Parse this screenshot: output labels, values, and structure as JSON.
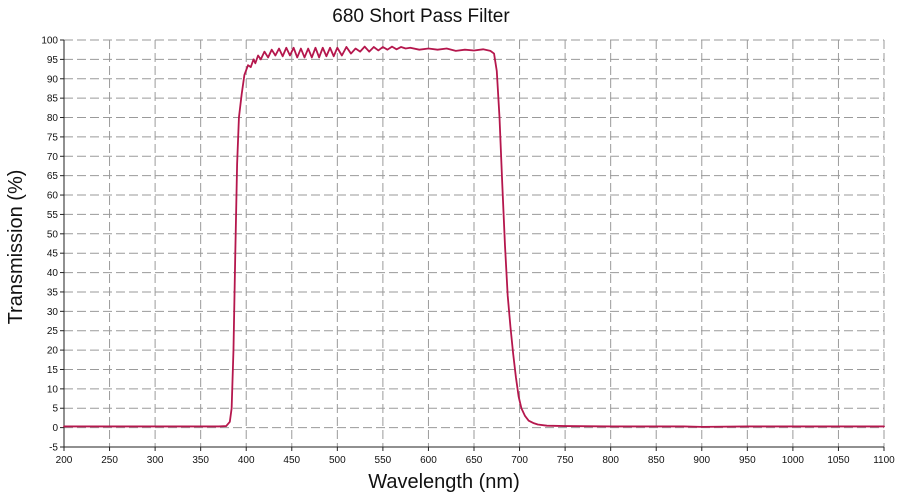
{
  "chart_data": {
    "type": "line",
    "title": "680 Short Pass Filter",
    "xlabel": "Wavelength (nm)",
    "ylabel": "Transmission (%)",
    "xlim": [
      200,
      1100
    ],
    "ylim": [
      -5,
      100
    ],
    "grid": true,
    "legend": "none",
    "xticks": [
      200,
      250,
      300,
      350,
      400,
      450,
      500,
      550,
      600,
      650,
      700,
      750,
      800,
      850,
      900,
      950,
      1000,
      1050,
      1100
    ],
    "yticks": [
      -5,
      0,
      5,
      10,
      15,
      20,
      25,
      30,
      35,
      40,
      45,
      50,
      55,
      60,
      65,
      70,
      75,
      80,
      85,
      90,
      95,
      100
    ],
    "series": [
      {
        "color": "#b5174d",
        "points": [
          [
            200,
            0.3
          ],
          [
            250,
            0.3
          ],
          [
            300,
            0.3
          ],
          [
            350,
            0.3
          ],
          [
            370,
            0.3
          ],
          [
            378,
            0.4
          ],
          [
            382,
            1.5
          ],
          [
            384,
            5
          ],
          [
            386,
            20
          ],
          [
            388,
            45
          ],
          [
            390,
            68
          ],
          [
            392,
            80
          ],
          [
            395,
            86
          ],
          [
            398,
            91
          ],
          [
            402,
            93.5
          ],
          [
            405,
            93
          ],
          [
            408,
            95
          ],
          [
            410,
            94
          ],
          [
            413,
            96
          ],
          [
            416,
            95
          ],
          [
            420,
            97
          ],
          [
            424,
            95.5
          ],
          [
            428,
            97.5
          ],
          [
            432,
            96
          ],
          [
            436,
            97.8
          ],
          [
            440,
            95.8
          ],
          [
            444,
            98
          ],
          [
            448,
            96
          ],
          [
            452,
            98
          ],
          [
            456,
            95.5
          ],
          [
            460,
            97.8
          ],
          [
            464,
            95.5
          ],
          [
            468,
            97.8
          ],
          [
            472,
            95.5
          ],
          [
            476,
            98
          ],
          [
            480,
            95.5
          ],
          [
            484,
            98
          ],
          [
            488,
            95.8
          ],
          [
            492,
            98
          ],
          [
            496,
            95.8
          ],
          [
            500,
            98
          ],
          [
            505,
            96
          ],
          [
            510,
            98.2
          ],
          [
            515,
            96.5
          ],
          [
            520,
            97.8
          ],
          [
            525,
            97
          ],
          [
            530,
            98.3
          ],
          [
            535,
            97
          ],
          [
            540,
            98.2
          ],
          [
            545,
            97.3
          ],
          [
            550,
            98.2
          ],
          [
            555,
            97.5
          ],
          [
            560,
            98.3
          ],
          [
            565,
            97.6
          ],
          [
            570,
            98.2
          ],
          [
            575,
            97.8
          ],
          [
            580,
            98
          ],
          [
            590,
            97.5
          ],
          [
            600,
            97.8
          ],
          [
            610,
            97.5
          ],
          [
            620,
            97.8
          ],
          [
            630,
            97.2
          ],
          [
            640,
            97.5
          ],
          [
            650,
            97.3
          ],
          [
            660,
            97.6
          ],
          [
            668,
            97.2
          ],
          [
            672,
            96.5
          ],
          [
            675,
            92
          ],
          [
            678,
            80
          ],
          [
            681,
            63
          ],
          [
            684,
            47
          ],
          [
            687,
            34
          ],
          [
            690,
            26
          ],
          [
            693,
            19
          ],
          [
            696,
            13
          ],
          [
            699,
            8
          ],
          [
            702,
            5
          ],
          [
            706,
            3
          ],
          [
            710,
            1.8
          ],
          [
            715,
            1.2
          ],
          [
            720,
            0.8
          ],
          [
            730,
            0.5
          ],
          [
            750,
            0.4
          ],
          [
            800,
            0.3
          ],
          [
            850,
            0.3
          ],
          [
            880,
            0.3
          ],
          [
            900,
            0.2
          ],
          [
            950,
            0.3
          ],
          [
            1000,
            0.3
          ],
          [
            1050,
            0.3
          ],
          [
            1100,
            0.3
          ]
        ]
      }
    ]
  }
}
